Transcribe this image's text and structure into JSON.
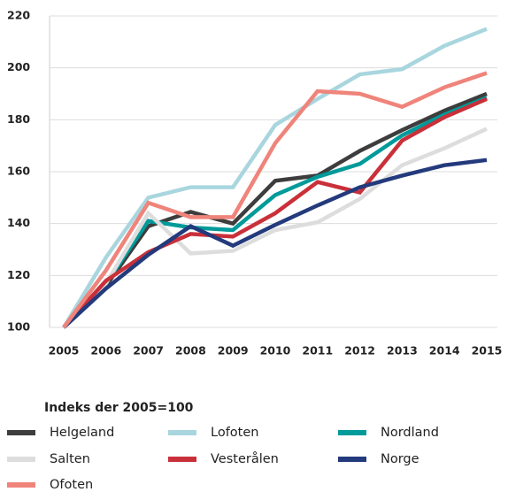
{
  "chart_data": {
    "type": "line",
    "categories": [
      "2005",
      "2006",
      "2007",
      "2008",
      "2009",
      "2010",
      "2011",
      "2012",
      "2013",
      "2014",
      "2015"
    ],
    "series": [
      {
        "name": "Helgeland",
        "color": "#3d3d3d",
        "values": [
          100,
          116,
          139,
          144.5,
          140,
          156.5,
          158.5,
          168,
          176,
          183.5,
          190
        ]
      },
      {
        "name": "Lofoten",
        "color": "#a9d6de",
        "values": [
          100,
          127,
          150,
          154,
          154,
          178,
          188,
          197.5,
          199.5,
          208.5,
          215
        ]
      },
      {
        "name": "Nordland",
        "color": "#009a9a",
        "values": [
          100,
          117,
          141,
          138.5,
          137.5,
          151,
          158,
          163,
          174,
          182,
          188.5
        ]
      },
      {
        "name": "Salten",
        "color": "#dddddd",
        "values": [
          100,
          117,
          144,
          128.5,
          129.5,
          137.5,
          140.5,
          149.5,
          162.5,
          169,
          176.5
        ]
      },
      {
        "name": "Vesterålen",
        "color": "#c9303a",
        "values": [
          100,
          118,
          129,
          136,
          135,
          144,
          156,
          152,
          172,
          181,
          188
        ]
      },
      {
        "name": "Norge",
        "color": "#233a7c",
        "values": [
          100,
          115,
          128,
          139,
          131.5,
          139.5,
          147,
          154,
          158.5,
          162.5,
          164.5
        ]
      },
      {
        "name": "Ofoten",
        "color": "#ef847b",
        "values": [
          100,
          122,
          148,
          142.5,
          142.5,
          171,
          191,
          190,
          185,
          192.5,
          198
        ]
      }
    ],
    "legend_title": "Indeks der 2005=100",
    "ylim": [
      100,
      220
    ],
    "yticks": [
      100,
      120,
      140,
      160,
      180,
      200,
      220
    ],
    "grid": true
  }
}
